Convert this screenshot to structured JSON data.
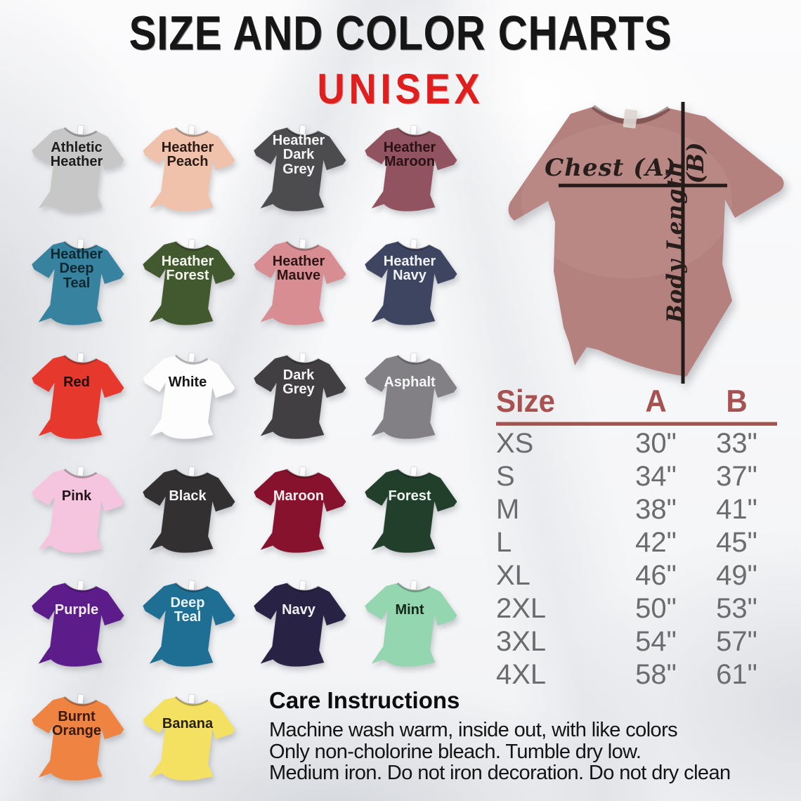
{
  "header": {
    "title": "SIZE AND COLOR CHARTS",
    "subtitle": "UNISEX"
  },
  "palette": {
    "title_color": "#161616",
    "subtitle_color": "#df1f1e",
    "table_header_color": "#a85151",
    "table_value_color": "#6b6c6e",
    "measure_line_color": "#241b18"
  },
  "shirts": [
    {
      "label": "Athletic\nHeather",
      "color": "#c7c7c7",
      "text_color": "#1d1d1d"
    },
    {
      "label": "Heather\nPeach",
      "color": "#f0c2ab",
      "text_color": "#2a1b15"
    },
    {
      "label": "Heather\nDark\nGrey",
      "color": "#4c4b4d",
      "text_color": "#f4f4f4"
    },
    {
      "label": "Heather\nMaroon",
      "color": "#91535f",
      "text_color": "#2b1219"
    },
    {
      "label": "Heather\nDeep\nTeal",
      "color": "#37829e",
      "text_color": "#0e2831"
    },
    {
      "label": "Heather\nForest",
      "color": "#42582f",
      "text_color": "#f2f5ec"
    },
    {
      "label": "Heather\nMauve",
      "color": "#d78d92",
      "text_color": "#2e1517"
    },
    {
      "label": "Heather\nNavy",
      "color": "#3d4560",
      "text_color": "#eff1f6"
    },
    {
      "label": "Red",
      "color": "#e6382c",
      "text_color": "#1f0b06"
    },
    {
      "label": "White",
      "color": "#fdfdfd",
      "text_color": "#161616"
    },
    {
      "label": "Dark\nGrey",
      "color": "#413f41",
      "text_color": "#f4f4f4"
    },
    {
      "label": "Asphalt",
      "color": "#828085",
      "text_color": "#f6f6f6"
    },
    {
      "label": "Pink",
      "color": "#f5c5df",
      "text_color": "#221419"
    },
    {
      "label": "Black",
      "color": "#333031",
      "text_color": "#f5f5f5"
    },
    {
      "label": "Maroon",
      "color": "#86122d",
      "text_color": "#f8eff1"
    },
    {
      "label": "Forest",
      "color": "#223f2b",
      "text_color": "#eff5f0"
    },
    {
      "label": "Purple",
      "color": "#5c1d8a",
      "text_color": "#f4edf9"
    },
    {
      "label": "Deep\nTeal",
      "color": "#1f6e93",
      "text_color": "#ebf4f8"
    },
    {
      "label": "Navy",
      "color": "#282345",
      "text_color": "#f0eff6"
    },
    {
      "label": "Mint",
      "color": "#93d6af",
      "text_color": "#15271c"
    },
    {
      "label": "Burnt\nOrange",
      "color": "#ee8342",
      "text_color": "#3b1b07"
    },
    {
      "label": "Banana",
      "color": "#f5e161",
      "text_color": "#262108"
    }
  ],
  "measure_shirt": {
    "color": "#b5817e",
    "chest_label": "Chest  (A)",
    "b_label": "(B)",
    "body_length_label": "Body Length"
  },
  "size_table": {
    "headers": [
      "Size",
      "A",
      "B"
    ],
    "rows": [
      [
        "XS",
        "30\"",
        "33\""
      ],
      [
        "S",
        "34\"",
        "37\""
      ],
      [
        "M",
        "38\"",
        "41\""
      ],
      [
        "L",
        "42\"",
        "45\""
      ],
      [
        "XL",
        "46\"",
        "49\""
      ],
      [
        "2XL",
        "50\"",
        "53\""
      ],
      [
        "3XL",
        "54\"",
        "57\""
      ],
      [
        "4XL",
        "58\"",
        "61\""
      ]
    ]
  },
  "care": {
    "heading": "Care Instructions",
    "lines": [
      "Machine wash warm, inside out, with like colors",
      "Only non-cholorine bleach. Tumble dry low.",
      "Medium iron. Do not iron decoration. Do not dry clean"
    ]
  },
  "chart_data": {
    "type": "table",
    "title": "SIZE AND COLOR CHARTS — UNISEX",
    "columns": [
      "Size",
      "A (Chest)",
      "B (Body Length)"
    ],
    "rows": [
      [
        "XS",
        "30\"",
        "33\""
      ],
      [
        "S",
        "34\"",
        "37\""
      ],
      [
        "M",
        "38\"",
        "41\""
      ],
      [
        "L",
        "42\"",
        "45\""
      ],
      [
        "XL",
        "46\"",
        "49\""
      ],
      [
        "2XL",
        "50\"",
        "53\""
      ],
      [
        "3XL",
        "54\"",
        "57\""
      ],
      [
        "4XL",
        "58\"",
        "61\""
      ]
    ],
    "available_colors": [
      "Athletic Heather",
      "Heather Peach",
      "Heather Dark Grey",
      "Heather Maroon",
      "Heather Deep Teal",
      "Heather Forest",
      "Heather Mauve",
      "Heather Navy",
      "Red",
      "White",
      "Dark Grey",
      "Asphalt",
      "Pink",
      "Black",
      "Maroon",
      "Forest",
      "Purple",
      "Deep Teal",
      "Navy",
      "Mint",
      "Burnt Orange",
      "Banana"
    ],
    "layout": {
      "grid": "4 columns of shirt swatches",
      "legend_position": "none",
      "grid_lines": false
    }
  }
}
